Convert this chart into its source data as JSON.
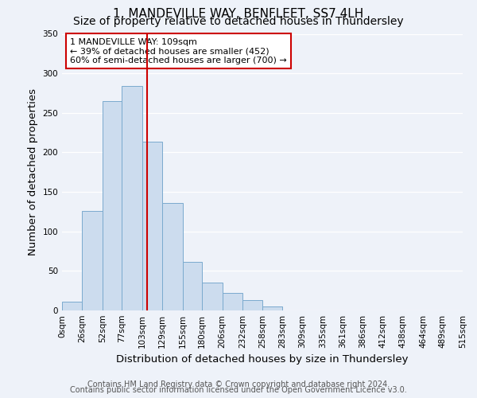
{
  "title": "1, MANDEVILLE WAY, BENFLEET, SS7 4LH",
  "subtitle": "Size of property relative to detached houses in Thundersley",
  "xlabel": "Distribution of detached houses by size in Thundersley",
  "ylabel": "Number of detached properties",
  "bin_edges": [
    0,
    26,
    52,
    77,
    103,
    129,
    155,
    180,
    206,
    232,
    258,
    283,
    309,
    335,
    361,
    386,
    412,
    438,
    464,
    489,
    515
  ],
  "bin_counts": [
    11,
    126,
    265,
    284,
    214,
    136,
    61,
    35,
    22,
    13,
    5,
    0,
    0,
    0,
    0,
    0,
    0,
    0,
    0,
    0
  ],
  "bar_facecolor": "#ccdcee",
  "bar_edgecolor": "#7aaace",
  "vline_x": 109,
  "vline_color": "#cc0000",
  "annotation_box_text": "1 MANDEVILLE WAY: 109sqm\n← 39% of detached houses are smaller (452)\n60% of semi-detached houses are larger (700) →",
  "annotation_box_edgecolor": "#cc0000",
  "ylim": [
    0,
    350
  ],
  "yticks": [
    0,
    50,
    100,
    150,
    200,
    250,
    300,
    350
  ],
  "xtick_labels": [
    "0sqm",
    "26sqm",
    "52sqm",
    "77sqm",
    "103sqm",
    "129sqm",
    "155sqm",
    "180sqm",
    "206sqm",
    "232sqm",
    "258sqm",
    "283sqm",
    "309sqm",
    "335sqm",
    "361sqm",
    "386sqm",
    "412sqm",
    "438sqm",
    "464sqm",
    "489sqm",
    "515sqm"
  ],
  "footer_line1": "Contains HM Land Registry data © Crown copyright and database right 2024.",
  "footer_line2": "Contains public sector information licensed under the Open Government Licence v3.0.",
  "background_color": "#eef2f9",
  "plot_bg_color": "#eef2f9",
  "grid_color": "#ffffff",
  "title_fontsize": 11,
  "subtitle_fontsize": 10,
  "axis_label_fontsize": 9.5,
  "tick_fontsize": 7.5,
  "annotation_fontsize": 8,
  "footer_fontsize": 7
}
